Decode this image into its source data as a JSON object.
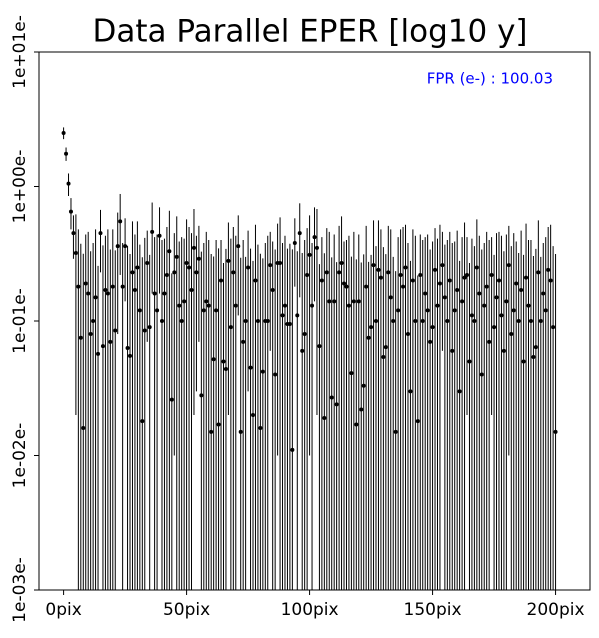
{
  "chart_data": {
    "type": "scatter",
    "title": "Data Parallel EPER [log10 y]",
    "annotation": "FPR (e-) : 100.03",
    "annotation_color": "#0000ff",
    "color": "#000000",
    "log_y": true,
    "xlim": [
      -10,
      214
    ],
    "ylim": [
      0.001,
      10
    ],
    "xticks": [
      {
        "value": 0,
        "label": "0pix"
      },
      {
        "value": 50,
        "label": "50pix"
      },
      {
        "value": 100,
        "label": "100pix"
      },
      {
        "value": 150,
        "label": "150pix"
      },
      {
        "value": 200,
        "label": "200pix"
      }
    ],
    "yticks": [
      {
        "value": 0.001,
        "label": "1e-03e-"
      },
      {
        "value": 0.01,
        "label": "1e-02e-"
      },
      {
        "value": 0.1,
        "label": "1e-01e-"
      },
      {
        "value": 1,
        "label": "1e+00e-"
      },
      {
        "value": 10,
        "label": "1e+01e-"
      }
    ],
    "x": [
      0,
      1,
      2,
      3,
      4,
      5,
      6,
      7,
      8,
      9,
      10,
      11,
      12,
      13,
      14,
      15,
      16,
      17,
      18,
      19,
      20,
      21,
      22,
      23,
      24,
      25,
      26,
      27,
      28,
      29,
      30,
      31,
      32,
      33,
      34,
      35,
      36,
      37,
      38,
      39,
      40,
      41,
      42,
      43,
      44,
      45,
      46,
      47,
      48,
      49,
      50,
      51,
      52,
      53,
      54,
      55,
      56,
      57,
      58,
      59,
      60,
      61,
      62,
      63,
      64,
      65,
      66,
      67,
      68,
      69,
      70,
      71,
      72,
      73,
      74,
      75,
      76,
      77,
      78,
      79,
      80,
      81,
      82,
      83,
      84,
      85,
      86,
      87,
      88,
      89,
      90,
      91,
      92,
      93,
      94,
      95,
      96,
      97,
      98,
      99,
      100,
      101,
      102,
      103,
      104,
      105,
      106,
      107,
      108,
      109,
      110,
      111,
      112,
      113,
      114,
      115,
      116,
      117,
      118,
      119,
      120,
      121,
      122,
      123,
      124,
      125,
      126,
      127,
      128,
      129,
      130,
      131,
      132,
      133,
      134,
      135,
      136,
      137,
      138,
      139,
      140,
      141,
      142,
      143,
      144,
      145,
      146,
      147,
      148,
      149,
      150,
      151,
      152,
      153,
      154,
      155,
      156,
      157,
      158,
      159,
      160,
      161,
      162,
      163,
      164,
      165,
      166,
      167,
      168,
      169,
      170,
      171,
      172,
      173,
      174,
      175,
      176,
      177,
      178,
      179,
      180,
      181,
      182,
      183,
      184,
      185,
      186,
      187,
      188,
      189,
      190,
      191,
      192,
      193,
      194,
      195,
      196,
      197,
      198,
      199,
      200
    ],
    "values": [
      2.5,
      1.75,
      1.05,
      0.65,
      0.45,
      0.32,
      0.18,
      0.075,
      0.016,
      0.19,
      0.16,
      0.08,
      0.1,
      0.15,
      0.057,
      0.45,
      0.065,
      0.17,
      0.16,
      0.07,
      0.18,
      0.085,
      0.36,
      0.55,
      0.18,
      0.36,
      0.063,
      0.055,
      0.23,
      0.17,
      0.25,
      0.12,
      0.018,
      0.085,
      0.27,
      0.09,
      0.46,
      0.16,
      0.12,
      0.43,
      0.1,
      0.16,
      0.22,
      0.33,
      0.026,
      0.23,
      0.3,
      0.13,
      0.1,
      0.14,
      0.27,
      0.25,
      0.17,
      0.35,
      0.23,
      0.29,
      0.028,
      0.12,
      0.14,
      0.13,
      0.015,
      0.052,
      0.12,
      0.017,
      0.2,
      0.05,
      0.044,
      0.28,
      0.09,
      0.23,
      0.13,
      0.36,
      0.015,
      0.07,
      0.1,
      0.25,
      0.045,
      0.02,
      0.2,
      0.1,
      0.016,
      0.042,
      0.1,
      0.1,
      0.26,
      0.17,
      0.04,
      0.27,
      0.27,
      0.11,
      0.13,
      0.095,
      0.095,
      0.011,
      0.38,
      0.11,
      0.45,
      0.06,
      0.08,
      0.22,
      0.31,
      0.13,
      0.42,
      0.35,
      0.065,
      0.2,
      0.019,
      0.23,
      0.14,
      0.027,
      0.14,
      0.024,
      0.23,
      0.27,
      0.19,
      0.18,
      0.13,
      0.041,
      0.14,
      0.017,
      0.14,
      0.022,
      0.033,
      0.18,
      0.075,
      0.09,
      0.26,
      0.1,
      0.24,
      0.21,
      0.054,
      0.064,
      0.23,
      0.15,
      0.1,
      0.015,
      0.12,
      0.22,
      0.18,
      0.25,
      0.08,
      0.03,
      0.2,
      0.1,
      0.018,
      0.22,
      0.1,
      0.16,
      0.12,
      0.07,
      0.09,
      0.24,
      0.13,
      0.19,
      0.26,
      0.15,
      0.1,
      0.2,
      0.06,
      0.12,
      0.17,
      0.03,
      0.14,
      0.21,
      0.22,
      0.05,
      0.11,
      0.1,
      0.25,
      0.16,
      0.04,
      0.13,
      0.18,
      0.07,
      0.22,
      0.09,
      0.15,
      0.2,
      0.11,
      0.06,
      0.14,
      0.26,
      0.08,
      0.12,
      0.19,
      0.1,
      0.17,
      0.05,
      0.21,
      0.13,
      0.1,
      0.054,
      0.064,
      0.23,
      0.1,
      0.16,
      0.12,
      0.24,
      0.2,
      0.09,
      0.015
    ],
    "errors": [
      0.25,
      0.2,
      0.2,
      0.17,
      0.16,
      0.3,
      0.3,
      0.3,
      0.3,
      0.25,
      0.3,
      0.25,
      0.28,
      0.33,
      0.2,
      0.22,
      0.3,
      0.26,
      0.32,
      0.27,
      0.3,
      0.25,
      0.28,
      0.33,
      0.2,
      0.22,
      0.3,
      0.26,
      0.32,
      0.27,
      0.3,
      0.25,
      0.28,
      0.33,
      0.2,
      0.22,
      0.3,
      0.26,
      0.32,
      0.27,
      0.3,
      0.25,
      0.28,
      0.33,
      0.2,
      0.22,
      0.3,
      0.26,
      0.32,
      0.27,
      0.3,
      0.25,
      0.28,
      0.33,
      0.2,
      0.22,
      0.3,
      0.26,
      0.32,
      0.27,
      0.3,
      0.25,
      0.28,
      0.33,
      0.2,
      0.22,
      0.3,
      0.26,
      0.32,
      0.27,
      0.3,
      0.25,
      0.28,
      0.33,
      0.2,
      0.22,
      0.3,
      0.26,
      0.32,
      0.27,
      0.3,
      0.25,
      0.28,
      0.33,
      0.2,
      0.22,
      0.3,
      0.26,
      0.32,
      0.27,
      0.3,
      0.25,
      0.28,
      0.33,
      0.2,
      0.22,
      0.3,
      0.26,
      0.32,
      0.27,
      0.3,
      0.25,
      0.28,
      0.33,
      0.2,
      0.22,
      0.3,
      0.26,
      0.32,
      0.27,
      0.3,
      0.25,
      0.28,
      0.33,
      0.2,
      0.22,
      0.3,
      0.26,
      0.32,
      0.27,
      0.3,
      0.25,
      0.28,
      0.33,
      0.2,
      0.22,
      0.3,
      0.26,
      0.32,
      0.27,
      0.3,
      0.25,
      0.28,
      0.33,
      0.2,
      0.22,
      0.3,
      0.26,
      0.32,
      0.27,
      0.3,
      0.25,
      0.28,
      0.33,
      0.2,
      0.22,
      0.3,
      0.26,
      0.32,
      0.27,
      0.3,
      0.25,
      0.28,
      0.33,
      0.2,
      0.22,
      0.3,
      0.26,
      0.32,
      0.27,
      0.3,
      0.25,
      0.28,
      0.33,
      0.2,
      0.22,
      0.3,
      0.26,
      0.32,
      0.27,
      0.3,
      0.25,
      0.28,
      0.33,
      0.2,
      0.22,
      0.3,
      0.26,
      0.32,
      0.27,
      0.3,
      0.25,
      0.28,
      0.33,
      0.2,
      0.22,
      0.3,
      0.26,
      0.32,
      0.27,
      0.3,
      0.25,
      0.28,
      0.33,
      0.2,
      0.22,
      0.3,
      0.26,
      0.32,
      0.27,
      0.3
    ]
  }
}
